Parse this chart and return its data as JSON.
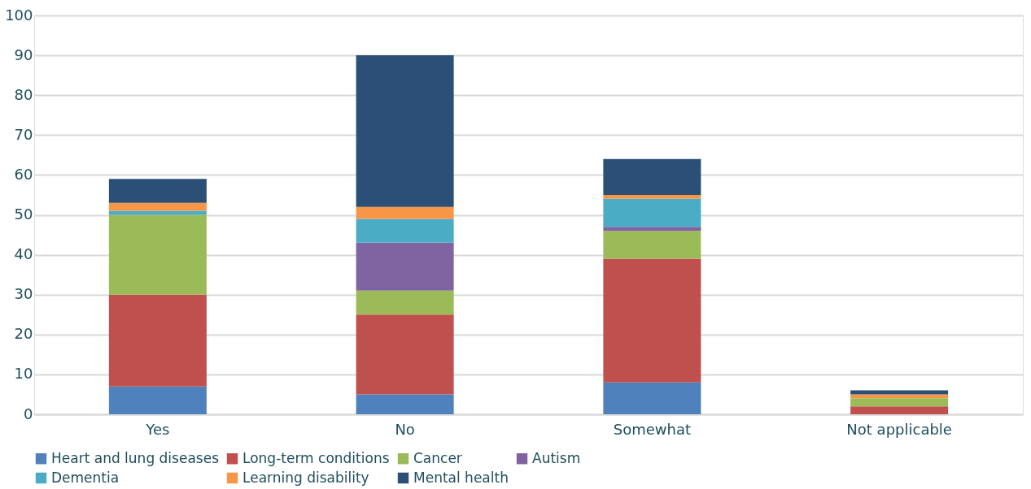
{
  "chart_data": {
    "type": "bar",
    "stacked": true,
    "categories": [
      "Yes",
      "No",
      "Somewhat",
      "Not applicable"
    ],
    "series": [
      {
        "name": "Heart and lung diseases",
        "color": "#4f81bd",
        "values": [
          7,
          5,
          8,
          0
        ]
      },
      {
        "name": "Long-term conditions",
        "color": "#c0504d",
        "values": [
          23,
          20,
          31,
          2
        ]
      },
      {
        "name": "Cancer",
        "color": "#9bbb59",
        "values": [
          20,
          6,
          7,
          2
        ]
      },
      {
        "name": "Autism",
        "color": "#8064a2",
        "values": [
          0,
          12,
          1,
          0
        ]
      },
      {
        "name": "Dementia",
        "color": "#4bacc6",
        "values": [
          1,
          6,
          7,
          0
        ]
      },
      {
        "name": "Learning disability",
        "color": "#f79646",
        "values": [
          2,
          3,
          1,
          1
        ]
      },
      {
        "name": "Mental health",
        "color": "#2c4f77",
        "values": [
          6,
          38,
          9,
          1
        ]
      }
    ],
    "ylim": [
      0,
      100
    ],
    "yticks": [
      0,
      10,
      20,
      30,
      40,
      50,
      60,
      70,
      80,
      90,
      100
    ],
    "grid": "y",
    "legend": "bottom"
  }
}
